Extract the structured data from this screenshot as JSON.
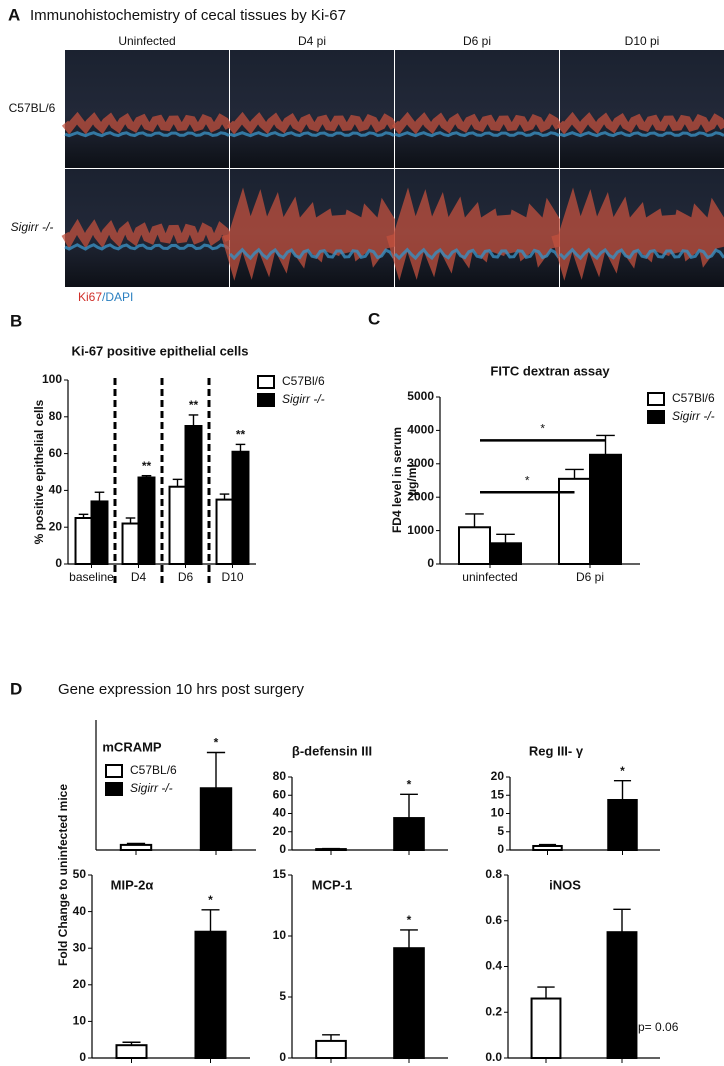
{
  "panel_a": {
    "label": "A",
    "title": "Immunohistochemistry of cecal tissues by Ki-67",
    "columns": [
      "Uninfected",
      "D4 pi",
      "D6 pi",
      "D10 pi"
    ],
    "rows": [
      "C57BL/6",
      "Sigirr -/-"
    ],
    "stain_red": "Ki67",
    "stain_sep": "/",
    "stain_blue": "DAPI"
  },
  "panel_labels": [
    "B",
    "C",
    "D"
  ],
  "panel_d_title": "Gene expression 10 hrs post surgery",
  "chart_data": [
    {
      "type": "bar",
      "title": "Ki-67 positive epithelial cells",
      "ylabel": "% positive epithelial cells",
      "categories": [
        "baseline",
        "D4",
        "D6",
        "D10"
      ],
      "ylim": [
        0,
        100
      ],
      "yticks": [
        0,
        20,
        40,
        60,
        80,
        100
      ],
      "legend": true,
      "series": [
        {
          "name": "C57Bl/6",
          "color": "#ffffff",
          "values": [
            25,
            22,
            42,
            35
          ],
          "errors": [
            2,
            3,
            4,
            3
          ]
        },
        {
          "name": "Sigirr -/-",
          "color": "#000000",
          "values": [
            34,
            47,
            75,
            61
          ],
          "errors": [
            5,
            1,
            6,
            4
          ],
          "annotations": [
            null,
            "**",
            "**",
            "**"
          ]
        }
      ]
    },
    {
      "type": "bar",
      "title": "FITC dextran assay",
      "ylabel": [
        "FD4 level in serum",
        "µg/ml"
      ],
      "categories": [
        "uninfected",
        "D6 pi"
      ],
      "ylim": [
        0,
        5000
      ],
      "yticks": [
        0,
        1000,
        2000,
        3000,
        4000,
        5000
      ],
      "legend": true,
      "series": [
        {
          "name": "C57Bl/6",
          "color": "#ffffff",
          "values": [
            1100,
            2550
          ],
          "errors": [
            400,
            280
          ]
        },
        {
          "name": "Sigirr -/-",
          "color": "#000000",
          "values": [
            620,
            3270
          ],
          "errors": [
            270,
            580
          ]
        }
      ],
      "brackets": [
        {
          "text": "*",
          "y": 2150
        },
        {
          "text": "*",
          "y": 3700
        }
      ]
    },
    {
      "type": "bar",
      "title": "mCRAMP",
      "ylabel": "Fold Change to uninfected mice",
      "ylim": [
        0,
        28
      ],
      "legend": true,
      "series": [
        {
          "name": "C57BL/6",
          "color": "#ffffff",
          "values": [
            1.1
          ],
          "errors": [
            0.3
          ]
        },
        {
          "name": "Sigirr -/-",
          "color": "#000000",
          "values": [
            13.3
          ],
          "errors": [
            7.7
          ],
          "annotations": [
            "*"
          ]
        }
      ]
    },
    {
      "type": "bar",
      "title": "β-defensin III",
      "ylim": [
        0,
        80
      ],
      "yticks": [
        0,
        20,
        40,
        60,
        80
      ],
      "series": [
        {
          "color": "#ffffff",
          "values": [
            1
          ],
          "errors": [
            0.5
          ]
        },
        {
          "color": "#000000",
          "values": [
            35
          ],
          "errors": [
            26
          ],
          "annotations": [
            "*"
          ]
        }
      ]
    },
    {
      "type": "bar",
      "title": "Reg III- γ",
      "ylim": [
        0,
        20
      ],
      "yticks": [
        0,
        5,
        10,
        15,
        20
      ],
      "series": [
        {
          "color": "#ffffff",
          "values": [
            1.1
          ],
          "errors": [
            0.4
          ]
        },
        {
          "color": "#000000",
          "values": [
            13.7
          ],
          "errors": [
            5.3
          ],
          "annotations": [
            "*"
          ]
        }
      ]
    },
    {
      "type": "bar",
      "title": "MIP-2α",
      "ylim": [
        0,
        50
      ],
      "yticks": [
        0,
        10,
        20,
        30,
        40,
        50
      ],
      "series": [
        {
          "color": "#ffffff",
          "values": [
            3.5
          ],
          "errors": [
            0.8
          ]
        },
        {
          "color": "#000000",
          "values": [
            34.5
          ],
          "errors": [
            6
          ],
          "annotations": [
            "*"
          ]
        }
      ]
    },
    {
      "type": "bar",
      "title": "MCP-1",
      "ylim": [
        0,
        15
      ],
      "yticks": [
        0,
        5,
        10,
        15
      ],
      "series": [
        {
          "color": "#ffffff",
          "values": [
            1.4
          ],
          "errors": [
            0.5
          ]
        },
        {
          "color": "#000000",
          "values": [
            9
          ],
          "errors": [
            1.5
          ],
          "annotations": [
            "*"
          ]
        }
      ]
    },
    {
      "type": "bar",
      "title": "iNOS",
      "ylim": [
        0,
        0.8
      ],
      "yticks": [
        {
          "value": 0,
          "label": "0.0"
        },
        0.2,
        0.4,
        0.6,
        0.8
      ],
      "note": "p= 0.06",
      "series": [
        {
          "color": "#ffffff",
          "values": [
            0.26
          ],
          "errors": [
            0.05
          ]
        },
        {
          "color": "#000000",
          "values": [
            0.55
          ],
          "errors": [
            0.1
          ]
        }
      ]
    }
  ]
}
